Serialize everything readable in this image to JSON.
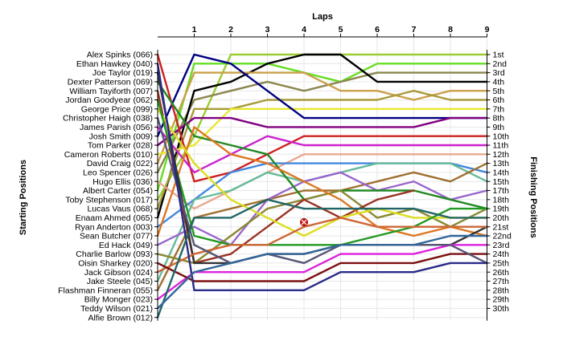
{
  "chart_data": {
    "type": "line",
    "title": "",
    "xlabel": "Laps",
    "ylabel_left": "Starting Positions",
    "ylabel_right": "Finishing Positions",
    "laps": [
      0,
      1,
      2,
      3,
      4,
      5,
      6,
      7,
      8,
      9
    ],
    "lap_labels": [
      "1",
      "2",
      "3",
      "4",
      "5",
      "6",
      "7",
      "8",
      "9"
    ],
    "drivers": [
      "Alex Spinks (066)",
      "Ethan Hawkey (040)",
      "Joe Taylor (019)",
      "Dexter Patterson (069)",
      "William Tayiforth (007)",
      "Jordan Goodyear (062)",
      "George Price (099)",
      "Christopher Haigh (038)",
      "James Parish (056)",
      "Josh Smith (009)",
      "Tom Parker (028)",
      "Cameron Roberts (010)",
      "David Craig (022)",
      "Leo Spencer (026)",
      "Hugo Ellis (036)",
      "Albert Carter (054)",
      "Toby Stephenson (017)",
      "Lucas Vaus (068)",
      "Enaam Ahmed (065)",
      "Ryan Anderton (003)",
      "Sean Butcher (077)",
      "Ed Hack (049)",
      "Charlie Barlow (093)",
      "Oisin Sharkey (020)",
      "Jack Gibson (024)",
      "Jake Steele (045)",
      "Flashman Finneran (055)",
      "Billy Monger (023)",
      "Teddy Wilson (021)",
      "Alfie Brown (012)"
    ],
    "finish_labels": [
      "1st",
      "2nd",
      "3rd",
      "4th",
      "5th",
      "6th",
      "7th",
      "8th",
      "9th",
      "10th",
      "11th",
      "12th",
      "13th",
      "14th",
      "15th",
      "17th",
      "18th",
      "19th",
      "20th",
      "21st",
      "22nd",
      "23rd",
      "24th",
      "25th",
      "26th",
      "27th",
      "28th",
      "29th",
      "30th"
    ],
    "series": [
      {
        "color": "#9acd32",
        "positions": [
          17,
          10,
          1,
          1,
          1,
          1,
          1,
          1,
          1,
          1
        ]
      },
      {
        "color": "#66dd22",
        "positions": [
          16,
          2,
          2,
          2,
          3,
          4,
          2,
          2,
          2,
          2
        ]
      },
      {
        "color": "#8b864e",
        "positions": [
          14,
          6,
          5,
          4,
          5,
          4,
          3,
          3,
          3,
          3
        ]
      },
      {
        "color": "#000000",
        "positions": [
          19,
          5,
          4,
          2,
          1,
          1,
          4,
          4,
          4,
          4
        ]
      },
      {
        "color": "#caa04a",
        "positions": [
          13,
          3,
          3,
          3,
          3,
          5,
          5,
          6,
          5,
          5
        ]
      },
      {
        "color": "#a89a3a",
        "positions": [
          18,
          7,
          7,
          6,
          6,
          6,
          6,
          5,
          6,
          6
        ]
      },
      {
        "color": "#e8e830",
        "positions": [
          12,
          11,
          7,
          7,
          7,
          7,
          7,
          7,
          7,
          7
        ]
      },
      {
        "color": "#000080",
        "positions": [
          10,
          1,
          2,
          5,
          8,
          8,
          8,
          8,
          8,
          8
        ]
      },
      {
        "color": "#800080",
        "positions": [
          11,
          8,
          8,
          9,
          9,
          9,
          9,
          9,
          8,
          8
        ]
      },
      {
        "color": "#cc2222",
        "positions": [
          1,
          15,
          14,
          12,
          10,
          10,
          10,
          10,
          10,
          10
        ]
      },
      {
        "color": "#cc22cc",
        "positions": [
          9,
          14,
          12,
          10,
          11,
          11,
          11,
          11,
          11,
          11
        ]
      },
      {
        "color": "#e8a890",
        "positions": [
          15,
          18,
          16,
          14,
          12,
          12,
          12,
          12,
          12,
          12
        ]
      },
      {
        "color": "#4488dd",
        "positions": [
          20,
          17,
          14,
          13,
          13,
          13,
          13,
          13,
          13,
          14
        ]
      },
      {
        "color": "#66bb99",
        "positions": [
          26,
          17,
          16,
          14,
          15,
          14,
          13,
          13,
          13,
          15
        ]
      },
      {
        "color": "#a07030",
        "positions": [
          27,
          19,
          18,
          17,
          16,
          16,
          15,
          14,
          15,
          13
        ]
      },
      {
        "color": "#9966cc",
        "positions": [
          22,
          20,
          22,
          17,
          15,
          14,
          16,
          15,
          17,
          16
        ]
      },
      {
        "color": "#228822",
        "positions": [
          4,
          10,
          11,
          12,
          17,
          16,
          16,
          16,
          17,
          18
        ]
      },
      {
        "color": "#888833",
        "positions": [
          23,
          24,
          21,
          18,
          17,
          16,
          19,
          18,
          20,
          18
        ]
      },
      {
        "color": "#993322",
        "positions": [
          5,
          24,
          23,
          20,
          17,
          19,
          17,
          16,
          null,
          null
        ]
      },
      {
        "color": "#dd7722",
        "positions": [
          21,
          9,
          12,
          13,
          15,
          17,
          20,
          21,
          20,
          21
        ]
      },
      {
        "color": "#dddd22",
        "positions": [
          7,
          13,
          17,
          19,
          21,
          19,
          18,
          19,
          19,
          19
        ]
      },
      {
        "color": "#229922",
        "positions": [
          6,
          21,
          22,
          22,
          22,
          22,
          21,
          20,
          18,
          18
        ]
      },
      {
        "color": "#333333",
        "positions": [
          3,
          24,
          24,
          23,
          23,
          22,
          22,
          22,
          22,
          20
        ]
      },
      {
        "color": "#cc6633",
        "positions": [
          25,
          23,
          22,
          22,
          20,
          19,
          20,
          20,
          20,
          20
        ]
      },
      {
        "color": "#dd22dd",
        "positions": [
          28,
          25,
          25,
          25,
          25,
          23,
          23,
          23,
          22,
          22
        ]
      },
      {
        "color": "#7a1010",
        "positions": [
          24,
          26,
          26,
          26,
          26,
          24,
          24,
          24,
          23,
          23
        ]
      },
      {
        "color": "#555577",
        "positions": [
          8,
          22,
          24,
          23,
          24,
          22,
          22,
          22,
          22,
          24
        ]
      },
      {
        "color": "#2a2a88",
        "positions": [
          2,
          27,
          27,
          27,
          27,
          25,
          25,
          25,
          24,
          24
        ]
      },
      {
        "color": "#226666",
        "positions": [
          30,
          19,
          19,
          17,
          18,
          18,
          18,
          18,
          19,
          19
        ]
      },
      {
        "color": "#336699",
        "positions": [
          29,
          25,
          24,
          23,
          23,
          22,
          22,
          22,
          21,
          21
        ]
      }
    ],
    "retired_marker": {
      "lap": 4,
      "position": 19.5
    },
    "grid": true
  }
}
